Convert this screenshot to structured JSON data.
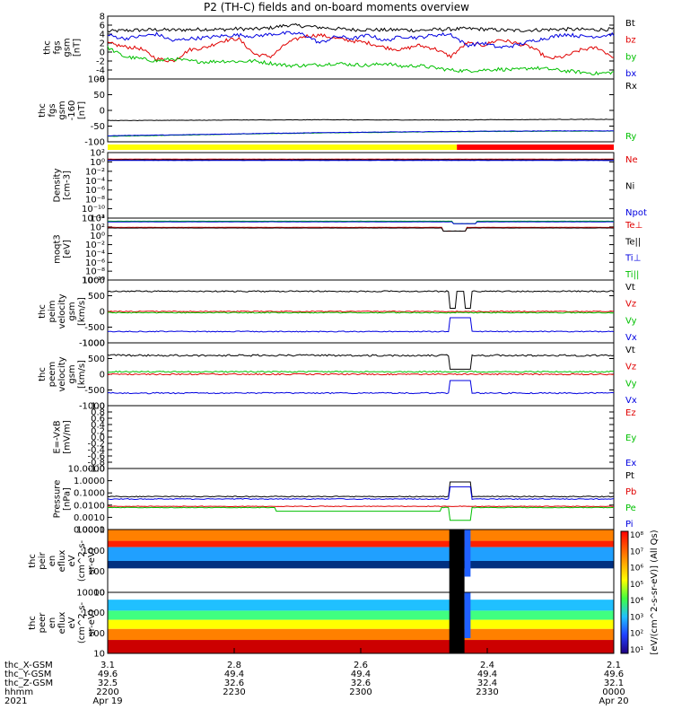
{
  "title": "P2 (TH-C) fields and on-board moments overview",
  "chart_data": {
    "type": "line",
    "panels": [
      {
        "id": "fgs",
        "ylabel": [
          "thc",
          "fgs",
          "gsm",
          "[nT]"
        ],
        "yticks": [
          "8",
          "6",
          "4",
          "2",
          "0",
          "-2",
          "-4",
          "-6"
        ],
        "ylim": [
          -6,
          8
        ],
        "legend": [
          {
            "label": "Bt",
            "color": "#000000"
          },
          {
            "label": "bz",
            "color": "#e00000"
          },
          {
            "label": "by",
            "color": "#00c000"
          },
          {
            "label": "bx",
            "color": "#0000e0"
          }
        ],
        "series": [
          {
            "name": "Bt",
            "color": "#000000",
            "values": [
              4.6,
              4.8,
              4.9,
              5.0,
              4.9,
              5.0,
              5.1,
              5.0,
              5.2,
              5.1,
              5.4,
              6.0,
              5.8,
              5.5,
              5.2,
              5.0,
              5.0,
              4.9,
              5.0,
              4.8,
              5.0,
              5.1,
              5.2,
              5.1,
              4.9,
              4.8,
              4.9,
              5.0,
              5.1,
              5.0,
              5.0,
              5.1
            ]
          },
          {
            "name": "bz",
            "color": "#e00000",
            "values": [
              2.0,
              1.2,
              0.8,
              -1.5,
              -2.0,
              0.5,
              1.0,
              2.5,
              3.0,
              -0.5,
              -1.0,
              2.0,
              3.5,
              3.8,
              3.0,
              2.5,
              2.0,
              1.0,
              0.5,
              1.5,
              0.8,
              -1.0,
              2.0,
              1.5,
              2.8,
              2.0,
              1.0,
              -1.5,
              -1.0,
              0.5,
              1.0,
              -1.2
            ]
          },
          {
            "name": "by",
            "color": "#00c000",
            "values": [
              1.0,
              -1.0,
              -1.5,
              -2.0,
              -1.5,
              -2.0,
              -2.2,
              -2.0,
              -2.1,
              -2.0,
              -2.5,
              -3.0,
              -3.0,
              -2.8,
              -2.5,
              -2.8,
              -3.0,
              -2.5,
              -3.2,
              -3.0,
              -3.5,
              -4.0,
              -4.2,
              -4.0,
              -3.8,
              -4.0,
              -3.5,
              -3.8,
              -4.2,
              -4.5,
              -4.8,
              -4.5
            ]
          },
          {
            "name": "bx",
            "color": "#0000e0",
            "values": [
              3.8,
              3.0,
              3.5,
              4.0,
              2.5,
              3.0,
              3.2,
              3.6,
              3.8,
              3.5,
              4.0,
              4.2,
              4.0,
              2.0,
              3.5,
              3.0,
              3.8,
              2.5,
              3.5,
              3.2,
              3.8,
              4.0,
              1.5,
              2.0,
              1.0,
              1.5,
              2.5,
              3.2,
              4.0,
              3.5,
              3.5,
              4.0
            ]
          }
        ]
      },
      {
        "id": "fgs_sm",
        "ylabel": [
          "thc",
          "fgs",
          "gsm",
          "-160",
          "[nT]"
        ],
        "yticks": [
          "100",
          "50",
          "0",
          "-50",
          "-100"
        ],
        "ylim": [
          -130,
          100
        ],
        "legend": [
          {
            "label": "Rx",
            "color": "#000000"
          },
          {
            "label": "Ry",
            "color": "#00c000"
          }
        ],
        "series": [
          {
            "name": "Rx",
            "color": "#000000",
            "values": [
              -52,
              -52,
              -51,
              -51,
              -50,
              -50,
              -50,
              -49,
              -50,
              -50,
              -50,
              -50,
              -49,
              -49,
              -48,
              -48,
              -48
            ]
          },
          {
            "name": "Ry",
            "color": "#00c000",
            "values": [
              -110,
              -108,
              -106,
              -104,
              -102,
              -100,
              -99,
              -97,
              -96,
              -95,
              -94,
              -93,
              -92,
              -92,
              -91,
              -91,
              -91
            ]
          },
          {
            "name": "",
            "color": "#0000e0",
            "values": [
              -108,
              -106,
              -105,
              -103,
              -101,
              -99,
              -98,
              -96,
              -95,
              -94,
              -93,
              -92,
              -91,
              -91,
              -90,
              -90,
              -90
            ]
          }
        ]
      },
      {
        "id": "density",
        "ylabel": [
          "Density",
          "[cm-3]"
        ],
        "yticks": [
          "10²",
          "10⁰",
          "10⁻²",
          "10⁻⁴",
          "10⁻⁶",
          "10⁻⁸",
          "10⁻¹⁰",
          "10⁻¹²"
        ],
        "legend": [
          {
            "label": "Ne",
            "color": "#e00000"
          },
          {
            "label": "Ni",
            "color": "#000000"
          },
          {
            "label": "Npot",
            "color": "#0000e0"
          }
        ]
      },
      {
        "id": "temp",
        "ylabel": [
          "moqt3",
          "[eV]"
        ],
        "yticks": [
          "10⁴",
          "10²",
          "10⁰",
          "10⁻²",
          "10⁻⁴",
          "10⁻⁶",
          "10⁻⁸",
          "10⁻¹⁰"
        ],
        "legend": [
          {
            "label": "Te⊥",
            "color": "#e00000"
          },
          {
            "label": "Te||",
            "color": "#000000"
          },
          {
            "label": "Ti⊥",
            "color": "#0000e0"
          },
          {
            "label": "Ti||",
            "color": "#00c000"
          }
        ]
      },
      {
        "id": "peim",
        "ylabel": [
          "thc",
          "peim",
          "velocity",
          "gsm",
          "[km/s]"
        ],
        "yticks": [
          "1000",
          "500",
          "0",
          "-500",
          "-1000"
        ],
        "ylim": [
          -1000,
          1000
        ],
        "legend": [
          {
            "label": "Vt",
            "color": "#000000"
          },
          {
            "label": "Vz",
            "color": "#e00000"
          },
          {
            "label": "Vy",
            "color": "#00c000"
          },
          {
            "label": "Vx",
            "color": "#0000e0"
          }
        ]
      },
      {
        "id": "peem",
        "ylabel": [
          "thc",
          "peem",
          "velocity",
          "gsm",
          "[km/s]"
        ],
        "yticks": [
          "1000",
          "500",
          "0",
          "-500",
          "-1000"
        ],
        "ylim": [
          -1000,
          1000
        ],
        "legend": [
          {
            "label": "Vt",
            "color": "#000000"
          },
          {
            "label": "Vz",
            "color": "#e00000"
          },
          {
            "label": "Vy",
            "color": "#00c000"
          },
          {
            "label": "Vx",
            "color": "#0000e0"
          }
        ]
      },
      {
        "id": "efield",
        "ylabel": [
          "E=-VxB",
          "[mV/m]"
        ],
        "yticks": [
          "1.0",
          "0.8",
          "0.6",
          "0.4",
          "0.2",
          "0.0",
          "-0.2",
          "-0.4",
          "-0.6",
          "-0.8",
          "-1.0"
        ],
        "ylim": [
          -1,
          1
        ],
        "legend": [
          {
            "label": "Ez",
            "color": "#e00000"
          },
          {
            "label": "Ey",
            "color": "#00c000"
          },
          {
            "label": "Ex",
            "color": "#0000e0"
          }
        ]
      },
      {
        "id": "pressure",
        "ylabel": [
          "Pressure",
          "[nPa]"
        ],
        "yticks": [
          "10.0000",
          "1.0000",
          "0.1000",
          "0.0100",
          "0.0010",
          "0.0001"
        ],
        "legend": [
          {
            "label": "Pt",
            "color": "#000000"
          },
          {
            "label": "Pb",
            "color": "#e00000"
          },
          {
            "label": "Pe",
            "color": "#00c000"
          },
          {
            "label": "Pi",
            "color": "#0000e0"
          }
        ]
      },
      {
        "id": "peir",
        "ylabel": [
          "thc",
          "peir",
          "en",
          "eflux",
          "eV",
          "(cm^2-s-",
          "sr-eV)"
        ],
        "yticks": [
          "10000",
          "1000",
          "100",
          "10"
        ]
      },
      {
        "id": "peer",
        "ylabel": [
          "thc",
          "peer",
          "en",
          "eflux",
          "eV",
          "(cm^2-s-",
          "sr-eV)"
        ],
        "yticks": [
          "10000",
          "1000",
          "100",
          "10"
        ]
      }
    ],
    "colorbar": {
      "label": "[eV/(cm^2-s-sr-eV)] (All Qs)",
      "ticks": [
        "10⁸",
        "10⁷",
        "10⁶",
        "10⁵",
        "10⁴",
        "10³",
        "10²",
        "10¹"
      ]
    },
    "xaxis": {
      "row_labels": [
        "thc_X-GSM",
        "thc_Y-GSM",
        "thc_Z-GSM",
        "hhmm",
        "2021"
      ],
      "ticks": [
        {
          "values": [
            "3.1",
            "49.6",
            "32.5",
            "2200",
            "Apr 19"
          ]
        },
        {
          "values": [
            "2.8",
            "49.4",
            "32.6",
            "2230",
            ""
          ]
        },
        {
          "values": [
            "2.6",
            "49.4",
            "32.6",
            "2300",
            ""
          ]
        },
        {
          "values": [
            "2.4",
            "49.4",
            "32.4",
            "2330",
            ""
          ]
        },
        {
          "values": [
            "2.1",
            "49.6",
            "32.1",
            "0000",
            "Apr 20"
          ]
        }
      ]
    }
  }
}
